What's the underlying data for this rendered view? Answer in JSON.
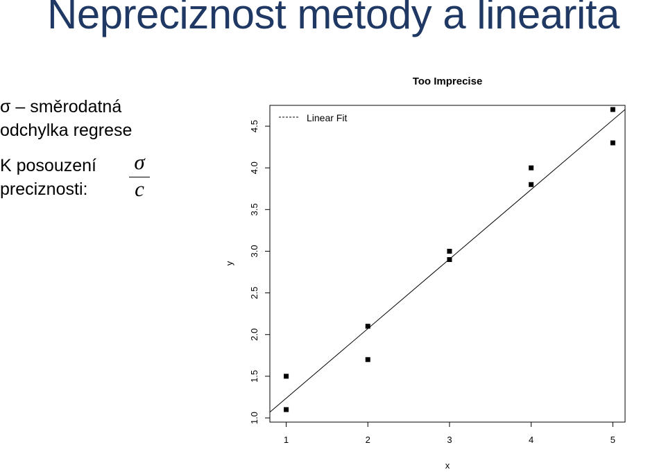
{
  "slide": {
    "title": "Nepreciznost metody a linearita",
    "bullet1_line1": "σ – směrodatná",
    "bullet1_line2": "odchylka regrese",
    "bullet2_line1": "K posouzení",
    "bullet2_line2": "preciznosti:",
    "formula": {
      "numerator": "σ",
      "denominator": "c"
    }
  },
  "chart_data": {
    "type": "scatter",
    "title": "Too Imprecise",
    "xlabel": "x",
    "ylabel": "y",
    "xlim": [
      0.8,
      5.15
    ],
    "ylim": [
      0.95,
      4.75
    ],
    "x_ticks": [
      1,
      2,
      3,
      4,
      5
    ],
    "y_ticks": [
      "1.0",
      "1.5",
      "2.0",
      "2.5",
      "3.0",
      "3.5",
      "4.0",
      "4.5"
    ],
    "grid": false,
    "legend": {
      "position": "top-left",
      "entries": [
        "Linear Fit"
      ]
    },
    "series": [
      {
        "name": "",
        "x": [
          1,
          1,
          2,
          2,
          3,
          3,
          4,
          4,
          5,
          5
        ],
        "y": [
          1.1,
          1.5,
          1.7,
          2.1,
          2.9,
          3.0,
          3.8,
          4.0,
          4.3,
          4.7
        ]
      }
    ],
    "fit_line": {
      "name": "Linear Fit",
      "x": [
        0.8,
        5.15
      ],
      "y": [
        1.07,
        4.7
      ]
    }
  }
}
